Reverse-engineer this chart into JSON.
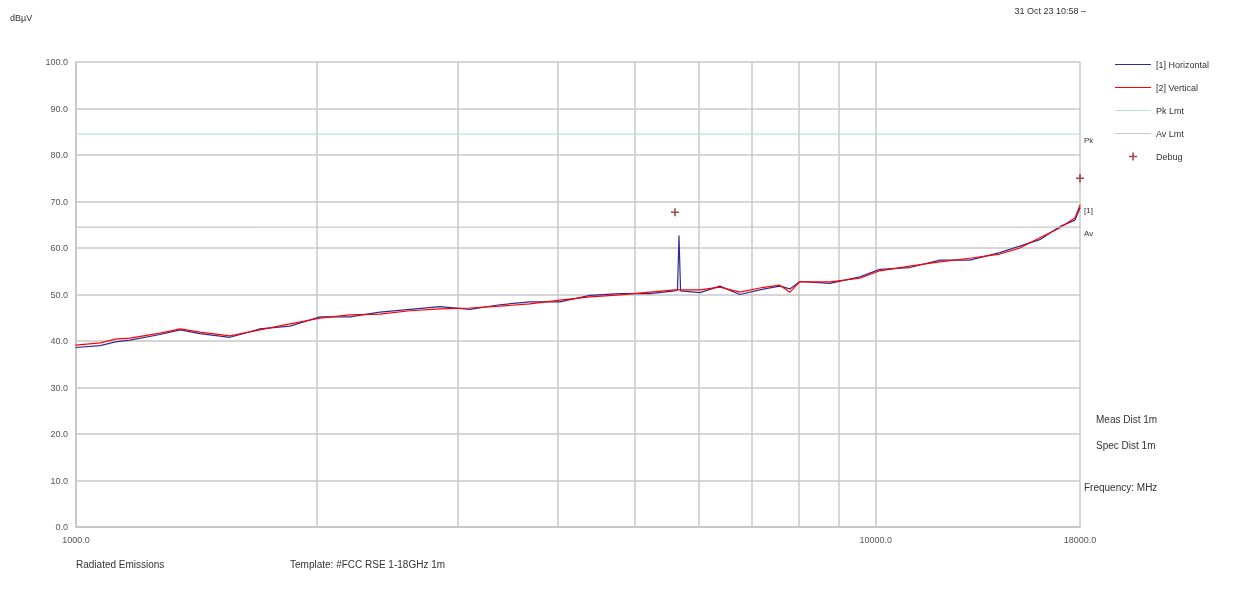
{
  "chart_data": {
    "type": "line",
    "ylabel": "dBµV",
    "xlabel": "Frequency: MHz",
    "log": "x",
    "grid": true,
    "legend": "right",
    "marker": "none",
    "line_style": "solid",
    "xlim": [
      1000,
      18000
    ],
    "xticks": [
      {
        "value": 1000,
        "label": "1000.0"
      },
      {
        "value": 2000,
        "label": null
      },
      {
        "value": 3000,
        "label": null
      },
      {
        "value": 4000,
        "label": null
      },
      {
        "value": 5000,
        "label": null
      },
      {
        "value": 6000,
        "label": null
      },
      {
        "value": 7000,
        "label": null
      },
      {
        "value": 8000,
        "label": null
      },
      {
        "value": 9000,
        "label": null
      },
      {
        "value": 10000,
        "label": "10000.0"
      },
      {
        "value": 18000,
        "label": "18000.0"
      }
    ],
    "ylim": [
      0,
      100
    ],
    "yticks": [
      {
        "value": 0,
        "label": "0.0"
      },
      {
        "value": 10,
        "label": "10.0"
      },
      {
        "value": 20,
        "label": "20.0"
      },
      {
        "value": 30,
        "label": "30.0"
      },
      {
        "value": 40,
        "label": "40.0"
      },
      {
        "value": 50,
        "label": "50.0"
      },
      {
        "value": 60,
        "label": "60.0"
      },
      {
        "value": 70,
        "label": "70.0"
      },
      {
        "value": 80,
        "label": "80.0"
      },
      {
        "value": 90,
        "label": "90.0"
      },
      {
        "value": 100,
        "label": "100.0"
      }
    ],
    "series": [
      {
        "name": "[1] Horizontal",
        "color": "#2b2b9a",
        "x": [
          1000,
          1072,
          1120,
          1168,
          1274,
          1350,
          1429,
          1558,
          1698,
          1851,
          2018,
          2200,
          2399,
          2615,
          2851,
          3108,
          3388,
          3694,
          4027,
          4390,
          4786,
          5218,
          5609,
          5650,
          5674,
          5700,
          6026,
          6383,
          6761,
          7161,
          7586,
          7808,
          8035,
          8760,
          9550,
          10116,
          11028,
          12023,
          13111,
          14289,
          15136,
          16032,
          16982,
          17742,
          18000
        ],
        "values": [
          38.6,
          39.0,
          39.8,
          40.2,
          41.4,
          42.4,
          41.6,
          40.8,
          42.6,
          43.2,
          45.2,
          45.2,
          46.2,
          46.8,
          47.4,
          46.8,
          47.8,
          48.4,
          48.4,
          49.8,
          50.2,
          50.2,
          50.8,
          51.0,
          62.6,
          50.8,
          50.4,
          51.8,
          50.0,
          51.0,
          51.8,
          51.2,
          52.8,
          52.4,
          53.8,
          55.4,
          55.8,
          57.4,
          57.4,
          59.0,
          60.4,
          61.8,
          64.6,
          66.0,
          68.6
        ]
      },
      {
        "name": "[2] Vertical",
        "color": "#ff0000",
        "x": [
          1000,
          1072,
          1120,
          1168,
          1274,
          1350,
          1429,
          1558,
          1698,
          1851,
          2018,
          2200,
          2399,
          2615,
          2851,
          3108,
          3388,
          3694,
          4027,
          4390,
          4786,
          5218,
          5609,
          6026,
          6383,
          6761,
          7161,
          7586,
          7808,
          8035,
          8760,
          9550,
          10116,
          11028,
          12023,
          13111,
          14289,
          15136,
          16032,
          16982,
          17742,
          18000
        ],
        "values": [
          39.1,
          39.6,
          40.4,
          40.6,
          41.7,
          42.6,
          41.9,
          41.1,
          42.4,
          43.7,
          44.9,
          45.6,
          45.8,
          46.5,
          46.9,
          47.1,
          47.5,
          48.0,
          48.8,
          49.5,
          49.9,
          50.5,
          51.0,
          51.0,
          51.6,
          50.5,
          51.4,
          52.0,
          50.5,
          52.7,
          52.7,
          53.5,
          55.1,
          56.1,
          57.0,
          57.8,
          58.7,
          60.0,
          62.2,
          64.3,
          66.5,
          69.2
        ]
      },
      {
        "name": "Pk Lmt",
        "color": "#bfe0e0",
        "x": [
          1000,
          18000
        ],
        "values": [
          84.5,
          84.5
        ]
      },
      {
        "name": "Av Lmt",
        "color": "#c8c8c8",
        "x": [
          1000,
          18000
        ],
        "values": [
          64.5,
          64.5
        ]
      },
      {
        "name": "Debug",
        "type": "scatter",
        "marker": "cross",
        "color": "#8b1a1a",
        "x": [
          5609,
          18000
        ],
        "values": [
          67.7,
          75.0
        ]
      }
    ],
    "annotations": [
      "31 Oct 23 10:58 –",
      "Meas Dist 1m",
      "Spec Dist 1m",
      "Radiated Emissions",
      "Template: #FCC RSE 1-18GHz 1m",
      "Pk",
      "Av",
      "[1]"
    ]
  }
}
